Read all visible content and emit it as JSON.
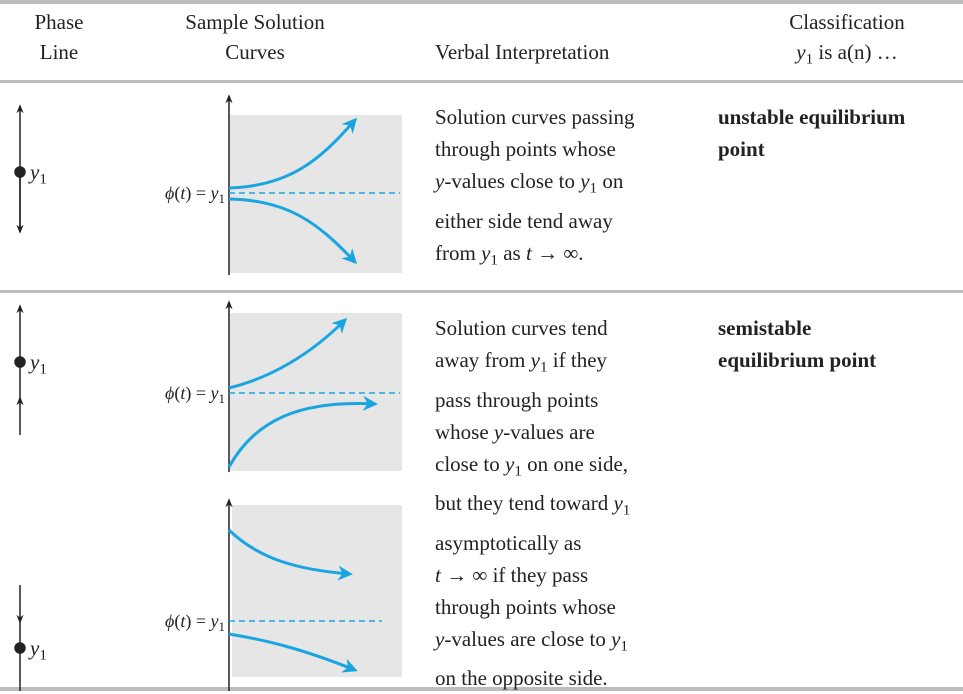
{
  "header": {
    "phase_line": [
      "Phase",
      "Line"
    ],
    "sample_curves": [
      "Sample Solution",
      "Curves"
    ],
    "verbal": "Verbal Interpretation",
    "classification": [
      "Classification",
      [
        "y",
        "1",
        " is a(n) …"
      ]
    ]
  },
  "rows": [
    {
      "phase_labels": [
        [
          "y",
          "1"
        ]
      ],
      "curve_labels": [
        [
          "ϕ",
          "(",
          "t",
          ") = ",
          "y",
          "1"
        ]
      ],
      "interpretation": [
        [
          "Solution curves passing"
        ],
        [
          "through points whose"
        ],
        [
          "y",
          "-values close to ",
          "y",
          "1",
          " on"
        ],
        [
          "either side tend away"
        ],
        [
          "from ",
          "y",
          "1",
          " as ",
          "t",
          " → ∞."
        ]
      ],
      "classification": [
        "unstable equilibrium",
        "point"
      ]
    },
    {
      "phase_labels": [
        [
          "y",
          "1"
        ],
        [
          "y",
          "1"
        ]
      ],
      "curve_labels": [
        [
          "ϕ",
          "(",
          "t",
          ") = ",
          "y",
          "1"
        ],
        [
          "ϕ",
          "(",
          "t",
          ") = ",
          "y",
          "1"
        ]
      ],
      "interpretation": [
        [
          "Solution curves tend"
        ],
        [
          "away from ",
          "y",
          "1",
          " if they"
        ],
        [
          "pass through points"
        ],
        [
          "whose ",
          "y",
          "-values are"
        ],
        [
          "close to ",
          "y",
          "1",
          " on one side,"
        ],
        [
          "but they tend toward ",
          "y",
          "1"
        ],
        [
          "asymptotically as"
        ],
        [
          "t",
          " → ∞ if they pass"
        ],
        [
          "through points whose"
        ],
        [
          "y",
          "-values are close to ",
          "y",
          "1"
        ],
        [
          "on the opposite side."
        ]
      ],
      "classification": [
        "semistable",
        "equilibrium point"
      ]
    }
  ]
}
